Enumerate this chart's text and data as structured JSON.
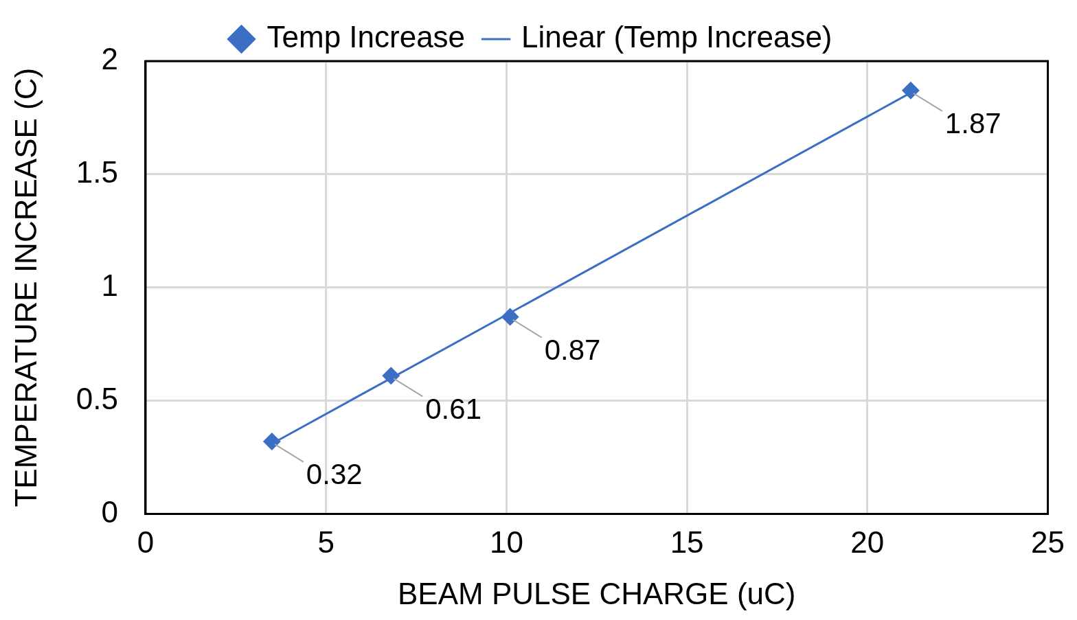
{
  "chart_data": {
    "type": "scatter",
    "xlabel": "BEAM PULSE CHARGE (uC)",
    "ylabel": "TEMPERATURE INCREASE (C)",
    "x": [
      3.5,
      6.8,
      10.1,
      21.2
    ],
    "series": [
      {
        "name": "Temp Increase",
        "color": "#3a6fc4",
        "marker": "diamond",
        "values": [
          0.32,
          0.61,
          0.87,
          1.87
        ],
        "value_labels": [
          "0.32",
          "0.61",
          "0.87",
          "1.87"
        ]
      },
      {
        "name": "Linear (Temp Increase)",
        "type": "line",
        "color": "#3a6fc4",
        "marker": "none",
        "x": [
          3.5,
          21.2
        ],
        "values": [
          0.31,
          1.86
        ]
      }
    ],
    "xlim": [
      0,
      25
    ],
    "xticks": [
      0,
      5,
      10,
      15,
      20,
      25
    ],
    "ylim": [
      0,
      2
    ],
    "yticks": [
      0,
      0.5,
      1,
      1.5,
      2
    ],
    "grid": true,
    "legend": "top"
  }
}
